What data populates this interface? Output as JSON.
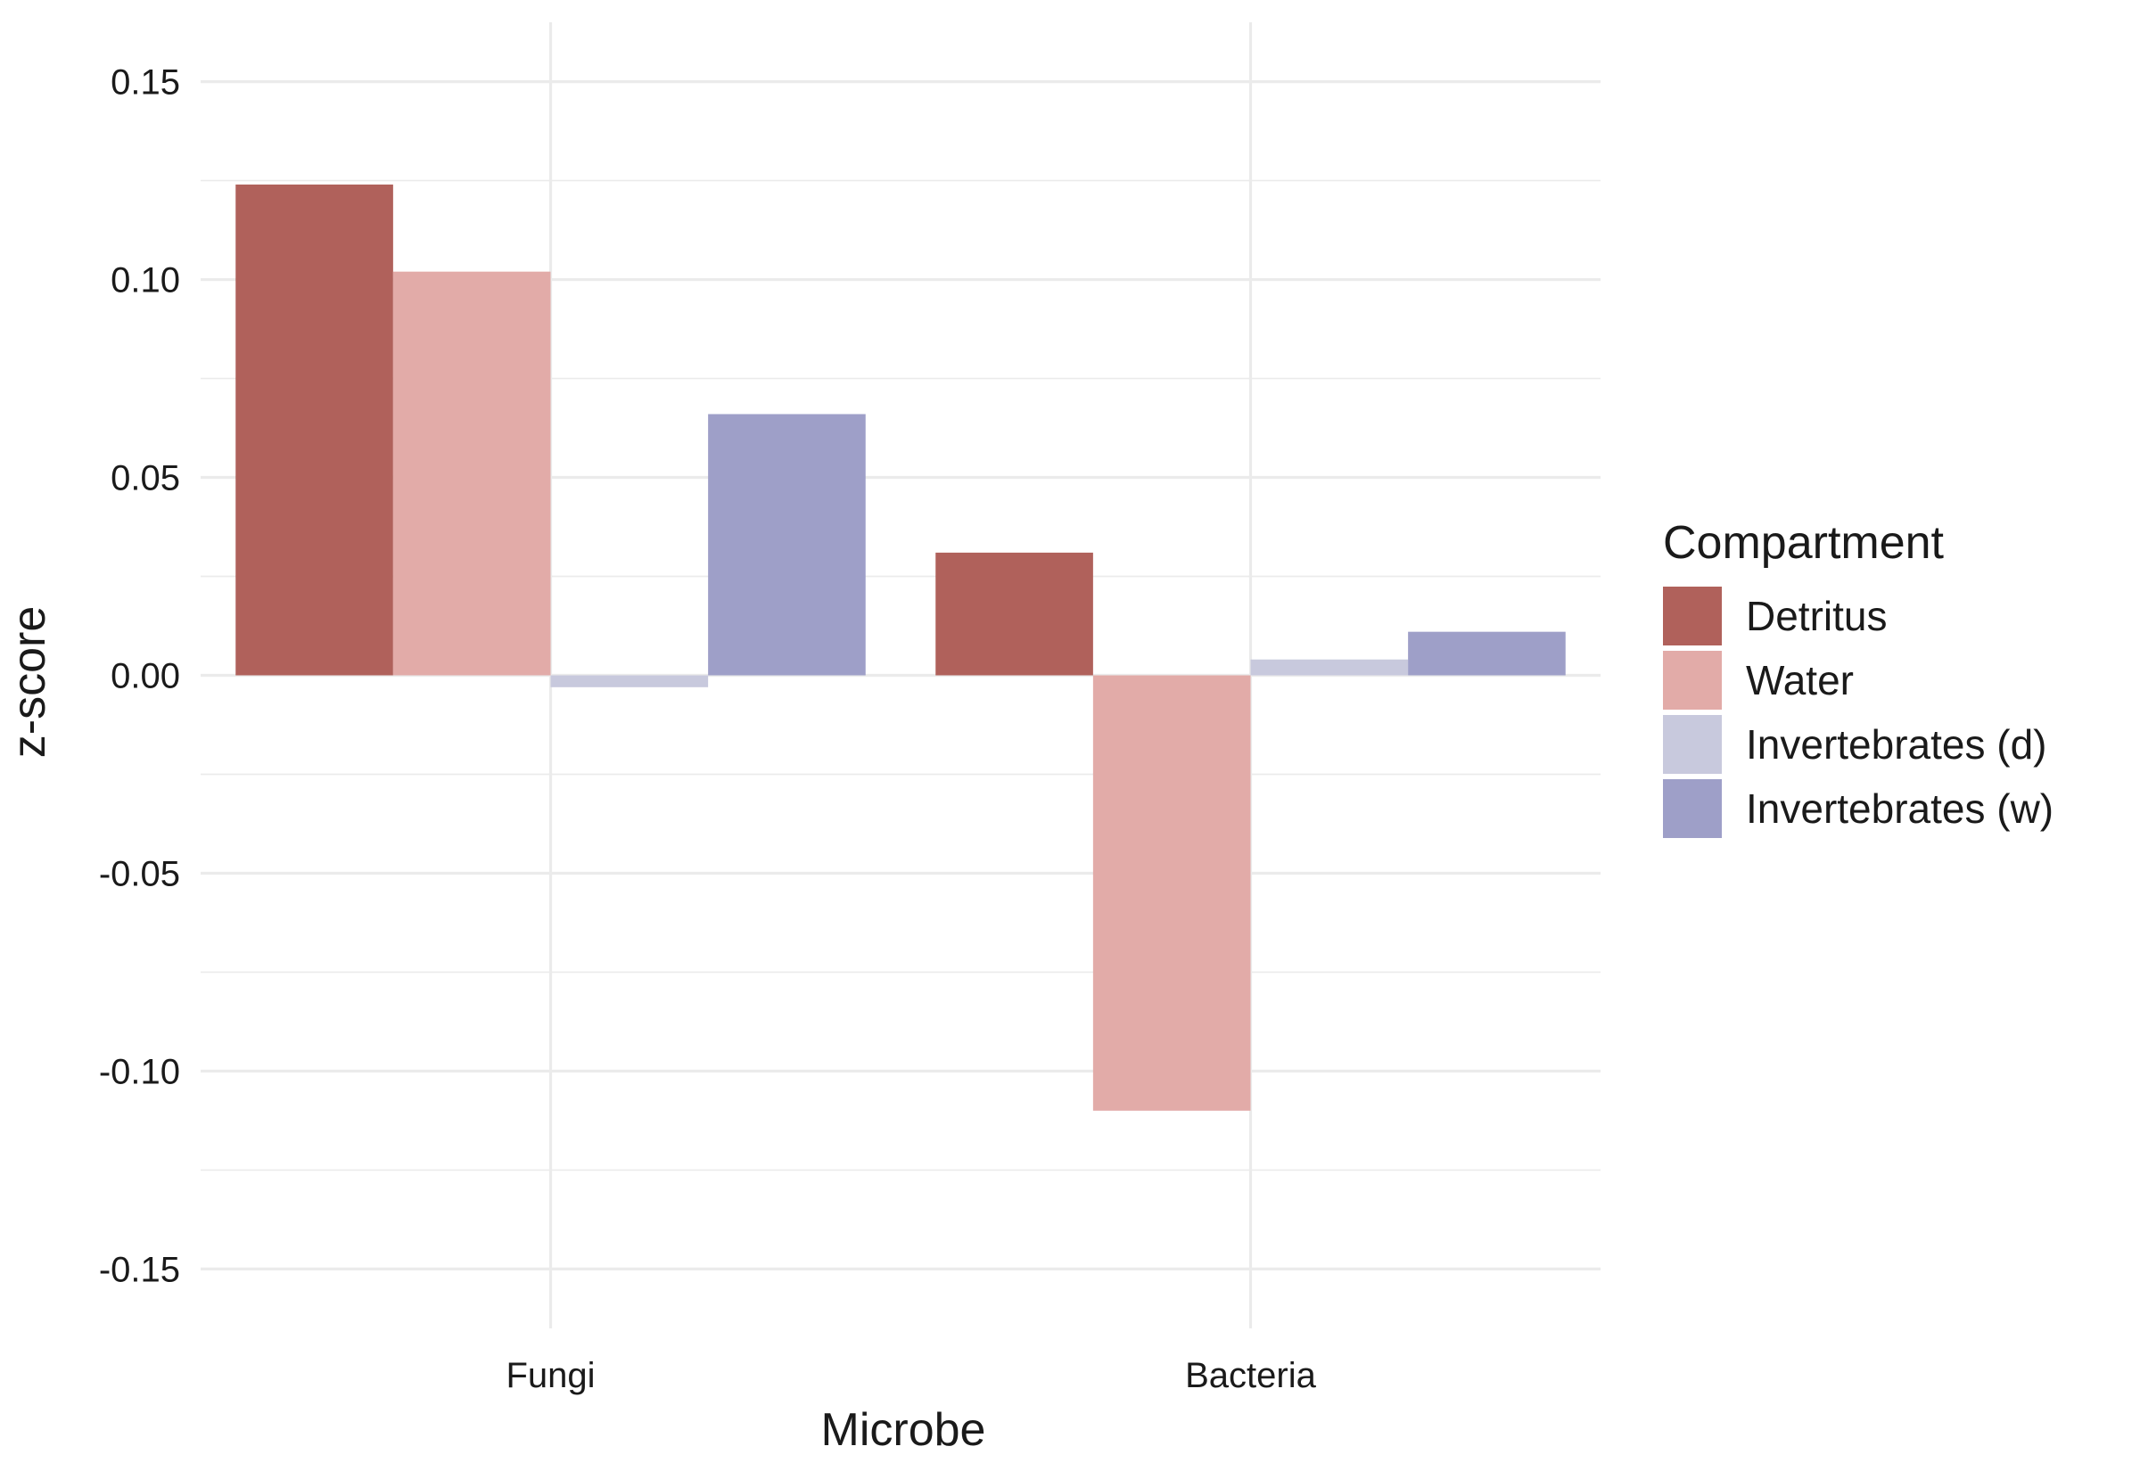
{
  "chart_data": {
    "type": "bar",
    "title": "",
    "xlabel": "Microbe",
    "ylabel": "z-score",
    "categories": [
      "Fungi",
      "Bacteria"
    ],
    "series": [
      {
        "name": "Detritus",
        "values": [
          0.124,
          0.031
        ],
        "color": "#b0615b"
      },
      {
        "name": "Water",
        "values": [
          0.102,
          -0.11
        ],
        "color": "#e2aba8"
      },
      {
        "name": "Invertebrates (d)",
        "values": [
          -0.003,
          0.004
        ],
        "color": "#c8c9dd"
      },
      {
        "name": "Invertebrates (w)",
        "values": [
          0.066,
          0.011
        ],
        "color": "#9e9fc8"
      }
    ],
    "ylim": [
      -0.165,
      0.165
    ],
    "yticks": [
      -0.15,
      -0.1,
      -0.05,
      0.0,
      0.05,
      0.1,
      0.15
    ],
    "ytick_labels": [
      "-0.15",
      "-0.10",
      "-0.05",
      "0.00",
      "0.05",
      "0.10",
      "0.15"
    ],
    "grid": true,
    "legend": {
      "title": "Compartment",
      "position": "right"
    }
  }
}
